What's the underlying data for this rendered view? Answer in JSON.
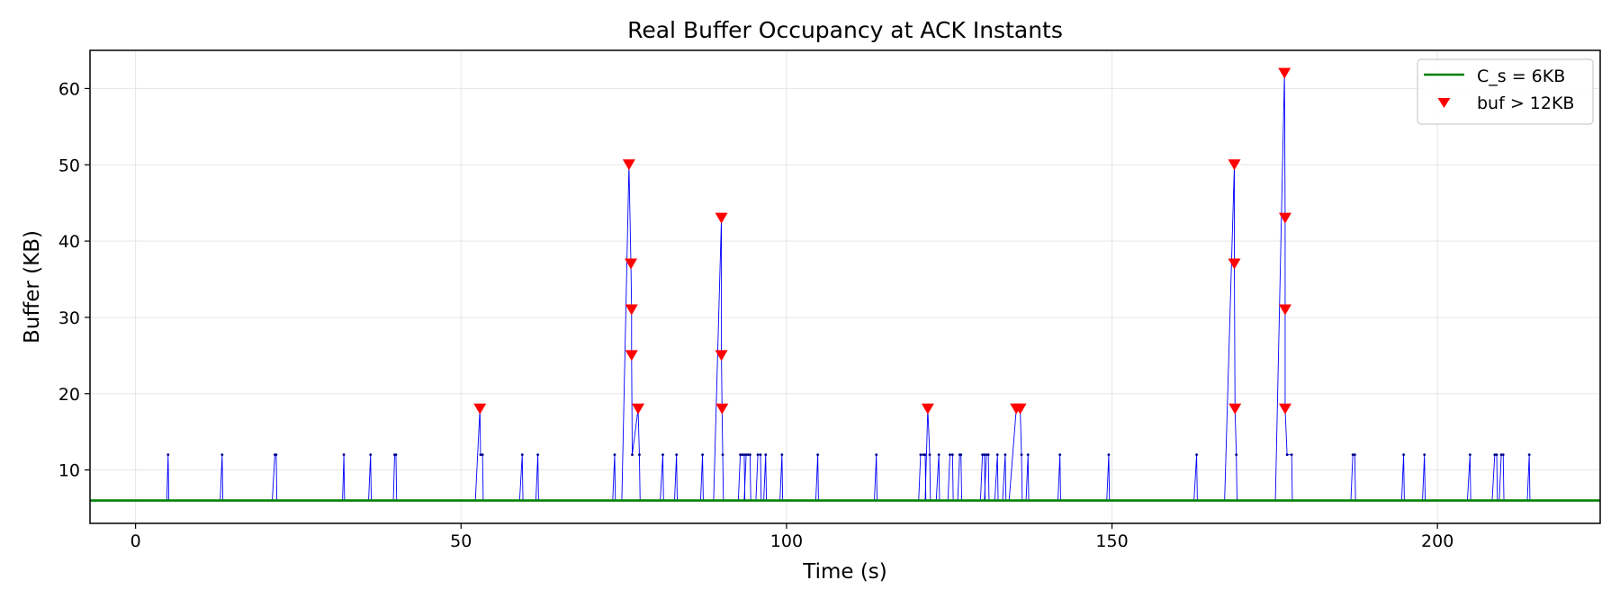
{
  "chart_data": {
    "type": "line",
    "title": "Real Buffer Occupancy at ACK Instants",
    "xlabel": "Time (s)",
    "ylabel": "Buffer (KB)",
    "xlim": [
      -7,
      225
    ],
    "ylim": [
      3,
      65
    ],
    "x_ticks": [
      0,
      50,
      100,
      150,
      200
    ],
    "y_ticks": [
      10,
      20,
      30,
      40,
      50,
      60
    ],
    "grid": true,
    "legend_position": "top-right",
    "colors": {
      "trace": "#0000ff",
      "threshold": "#008000",
      "marker": "#ff0000",
      "grid": "#e5e5e5"
    },
    "threshold": {
      "name": "C_s = 6KB",
      "value": 6
    },
    "baseline": 6,
    "spikes": [
      {
        "x0": 4.8,
        "points": [
          [
            5.0,
            12
          ]
        ]
      },
      {
        "x0": 13.0,
        "points": [
          [
            13.3,
            12
          ]
        ]
      },
      {
        "x0": 21.0,
        "points": [
          [
            21.4,
            12
          ],
          [
            21.6,
            12
          ]
        ]
      },
      {
        "x0": 31.8,
        "points": [
          [
            32.0,
            12
          ]
        ]
      },
      {
        "x0": 35.8,
        "points": [
          [
            36.1,
            12
          ]
        ]
      },
      {
        "x0": 39.6,
        "points": [
          [
            39.8,
            12
          ],
          [
            40.0,
            12
          ]
        ]
      },
      {
        "x0": 52.2,
        "points": [
          [
            52.9,
            18
          ],
          [
            53.0,
            12
          ],
          [
            53.3,
            12
          ]
        ]
      },
      {
        "x0": 59.0,
        "points": [
          [
            59.4,
            12
          ]
        ]
      },
      {
        "x0": 61.5,
        "points": [
          [
            61.8,
            12
          ]
        ]
      },
      {
        "x0": 73.3,
        "points": [
          [
            73.6,
            12
          ]
        ]
      },
      {
        "x0": 74.7,
        "points": [
          [
            75.8,
            50
          ],
          [
            76.1,
            37
          ],
          [
            76.2,
            31
          ],
          [
            76.2,
            25
          ],
          [
            76.3,
            12
          ],
          [
            77.2,
            18
          ],
          [
            77.4,
            12
          ]
        ]
      },
      {
        "x0": 80.6,
        "points": [
          [
            81.0,
            12
          ]
        ]
      },
      {
        "x0": 82.8,
        "points": [
          [
            83.1,
            12
          ]
        ]
      },
      {
        "x0": 86.8,
        "points": [
          [
            87.1,
            12
          ]
        ]
      },
      {
        "x0": 88.8,
        "points": [
          [
            90.0,
            43
          ],
          [
            90.0,
            25
          ],
          [
            90.1,
            18
          ],
          [
            90.2,
            12
          ]
        ]
      },
      {
        "x0": 92.6,
        "points": [
          [
            92.9,
            12
          ],
          [
            93.2,
            12
          ],
          [
            93.5,
            12
          ]
        ]
      },
      {
        "x0": 93.5,
        "points": [
          [
            93.8,
            12
          ],
          [
            94.1,
            12
          ],
          [
            94.4,
            12
          ]
        ]
      },
      {
        "x0": 95.3,
        "points": [
          [
            95.6,
            12
          ],
          [
            96.0,
            12
          ]
        ]
      },
      {
        "x0": 96.5,
        "points": [
          [
            96.8,
            12
          ]
        ]
      },
      {
        "x0": 99.0,
        "points": [
          [
            99.3,
            12
          ]
        ]
      },
      {
        "x0": 104.5,
        "points": [
          [
            104.8,
            12
          ]
        ]
      },
      {
        "x0": 113.5,
        "points": [
          [
            113.8,
            12
          ]
        ]
      },
      {
        "x0": 120.3,
        "points": [
          [
            120.6,
            12
          ],
          [
            121.0,
            12
          ],
          [
            121.3,
            12
          ]
        ]
      },
      {
        "x0": 121.3,
        "points": [
          [
            121.7,
            18
          ],
          [
            122.0,
            12
          ]
        ]
      },
      {
        "x0": 123.0,
        "points": [
          [
            123.4,
            12
          ]
        ]
      },
      {
        "x0": 124.8,
        "points": [
          [
            125.1,
            12
          ],
          [
            125.5,
            12
          ]
        ]
      },
      {
        "x0": 126.3,
        "points": [
          [
            126.6,
            12
          ],
          [
            126.8,
            12
          ]
        ]
      },
      {
        "x0": 129.8,
        "points": [
          [
            130.1,
            12
          ],
          [
            130.4,
            12
          ]
        ]
      },
      {
        "x0": 130.4,
        "points": [
          [
            130.7,
            12
          ],
          [
            131.0,
            12
          ]
        ]
      },
      {
        "x0": 132.0,
        "points": [
          [
            132.4,
            12
          ]
        ]
      },
      {
        "x0": 133.2,
        "points": [
          [
            133.6,
            12
          ]
        ]
      },
      {
        "x0": 134.2,
        "points": [
          [
            135.3,
            18
          ],
          [
            135.9,
            18
          ],
          [
            136.1,
            12
          ]
        ]
      },
      {
        "x0": 136.8,
        "points": [
          [
            137.1,
            12
          ]
        ]
      },
      {
        "x0": 141.7,
        "points": [
          [
            142.0,
            12
          ]
        ]
      },
      {
        "x0": 149.2,
        "points": [
          [
            149.5,
            12
          ]
        ]
      },
      {
        "x0": 162.6,
        "points": [
          [
            163.0,
            12
          ]
        ]
      },
      {
        "x0": 167.3,
        "points": [
          [
            168.8,
            50
          ],
          [
            168.8,
            37
          ],
          [
            168.9,
            18
          ],
          [
            169.1,
            12
          ]
        ]
      },
      {
        "x0": 175.1,
        "points": [
          [
            176.5,
            62
          ],
          [
            176.6,
            43
          ],
          [
            176.6,
            31
          ],
          [
            176.6,
            18
          ],
          [
            176.9,
            12
          ],
          [
            177.6,
            12
          ]
        ]
      },
      {
        "x0": 186.7,
        "points": [
          [
            187.0,
            12
          ],
          [
            187.3,
            12
          ]
        ]
      },
      {
        "x0": 194.5,
        "points": [
          [
            194.8,
            12
          ]
        ]
      },
      {
        "x0": 197.7,
        "points": [
          [
            198.0,
            12
          ]
        ]
      },
      {
        "x0": 204.6,
        "points": [
          [
            205.0,
            12
          ]
        ]
      },
      {
        "x0": 208.4,
        "points": [
          [
            208.8,
            12
          ],
          [
            209.1,
            12
          ]
        ]
      },
      {
        "x0": 209.5,
        "points": [
          [
            209.8,
            12
          ],
          [
            210.1,
            12
          ]
        ]
      },
      {
        "x0": 213.8,
        "points": [
          [
            214.1,
            12
          ]
        ]
      }
    ],
    "series": [
      {
        "name": "C_s = 6KB",
        "kind": "line",
        "color": "#008000"
      },
      {
        "name": "buf > 12KB",
        "kind": "marker",
        "color": "#ff0000",
        "threshold_value": 12
      }
    ]
  }
}
